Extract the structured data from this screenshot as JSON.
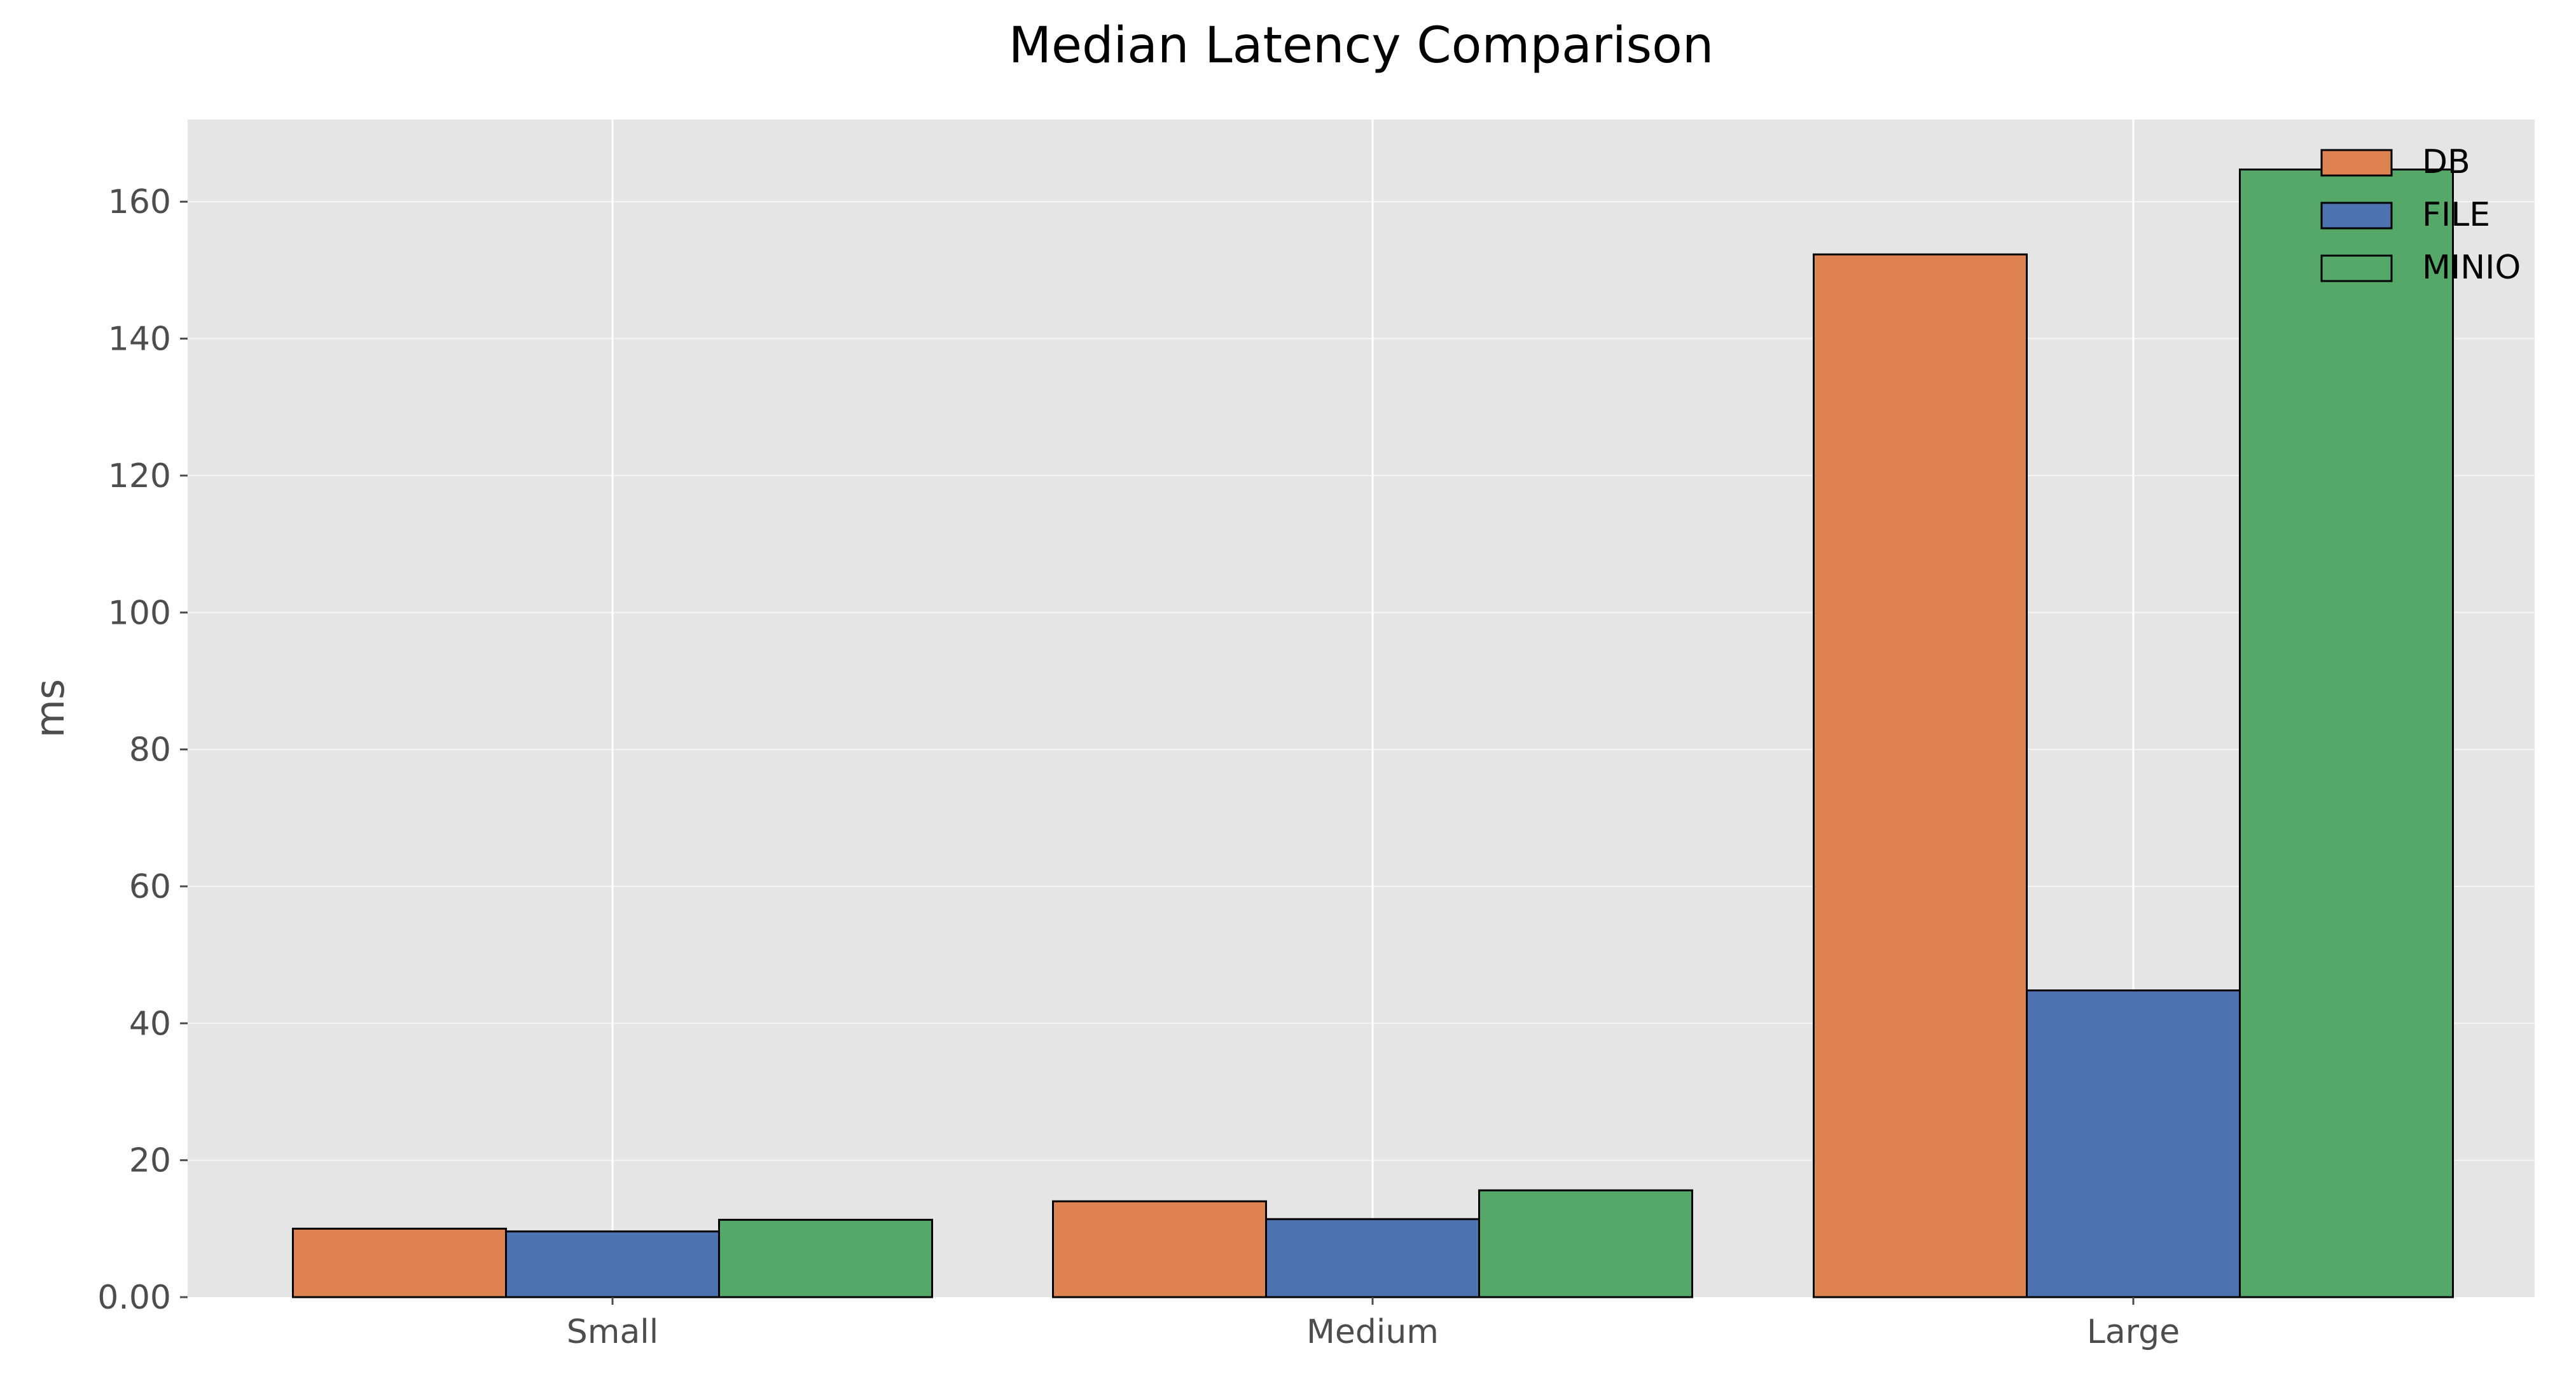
{
  "chart_data": {
    "type": "bar",
    "title": "Median Latency Comparison",
    "xlabel": "",
    "ylabel": "ms",
    "categories": [
      "Small",
      "Medium",
      "Large"
    ],
    "series": [
      {
        "name": "DB",
        "color": "#dd8452",
        "values": [
          10.0,
          14.0,
          152.3
        ]
      },
      {
        "name": "FILE",
        "color": "#4c72b0",
        "values": [
          9.6,
          11.4,
          44.8
        ]
      },
      {
        "name": "MINIO",
        "color": "#55a868",
        "values": [
          11.3,
          15.6,
          164.7
        ]
      }
    ],
    "ylim": [
      0,
      172
    ],
    "yticks": [
      0,
      20,
      40,
      60,
      80,
      100,
      120,
      140,
      160
    ],
    "ytick_labels": [
      "0.00",
      "20",
      "40",
      "60",
      "80",
      "100",
      "120",
      "140",
      "160"
    ],
    "grid": true,
    "legend_position": "top-right",
    "background_color": "#e5e5e5",
    "grid_color": "#ffffff",
    "bar_edge_color": "#000000"
  }
}
